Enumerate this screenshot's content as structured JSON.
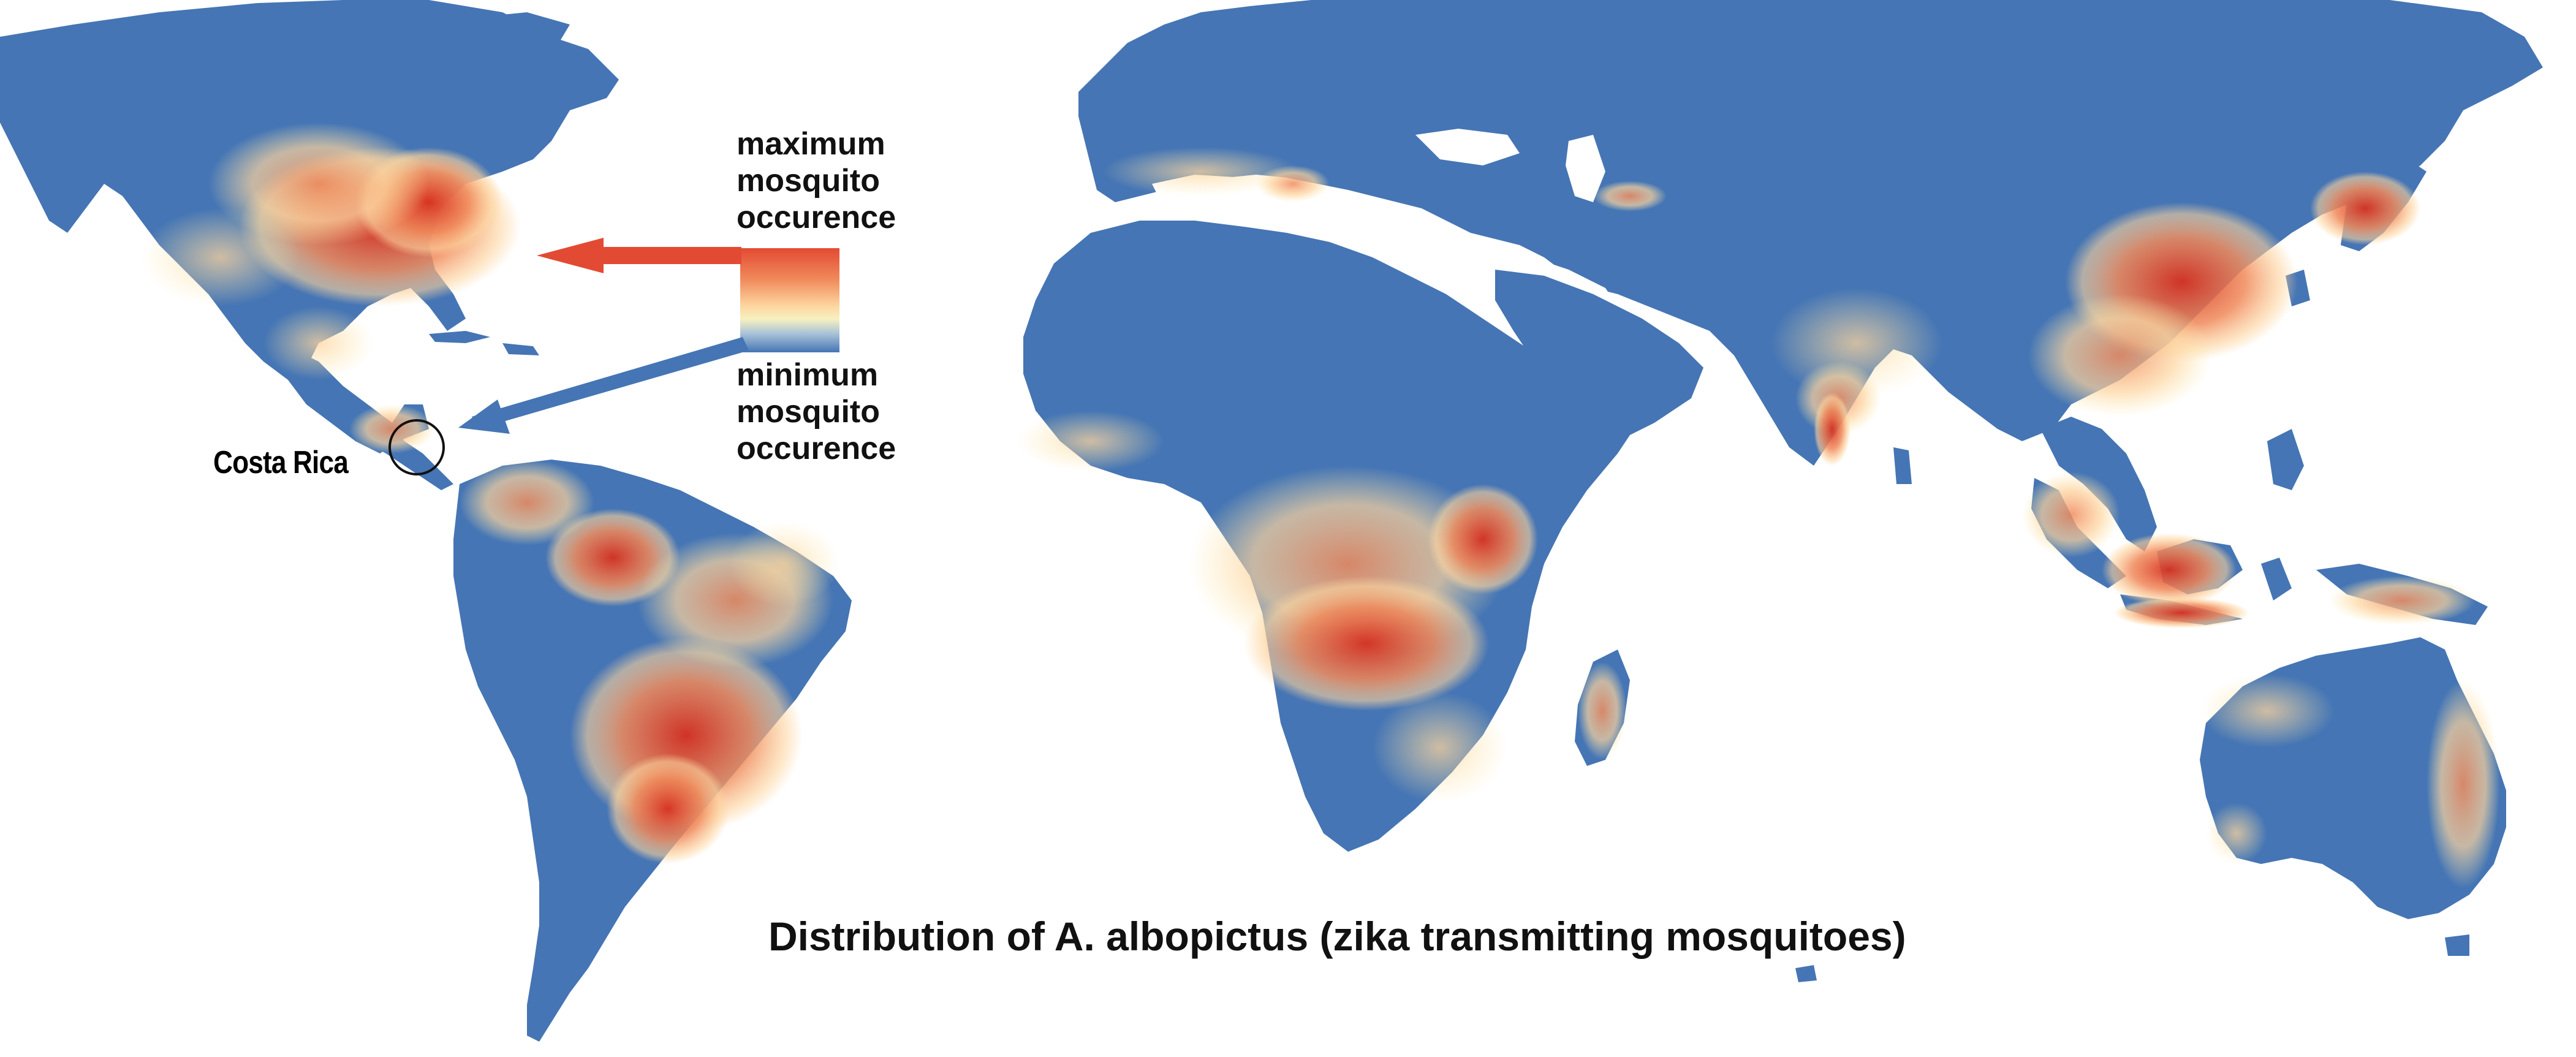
{
  "title": "Distribution of A. albopictus (zika transmitting mosquitoes)",
  "legend": {
    "max_label_lines": [
      "maximum",
      "mosquito",
      "occurence"
    ],
    "min_label_lines": [
      "minimum",
      "mosquito",
      "occurence"
    ],
    "gradient_colors": [
      "#e34a33",
      "#f08a5b",
      "#fdd49e",
      "#f7f1c0",
      "#a9c2d8",
      "#4575b4"
    ]
  },
  "callout": {
    "place_label": "Costa Rica"
  },
  "colors": {
    "land_low": "#4575b4",
    "land_mid": "#fee8a8",
    "land_high": "#e34a33",
    "ocean": "#ffffff",
    "arrow_max": "#e34a33",
    "arrow_min": "#4575b4"
  }
}
